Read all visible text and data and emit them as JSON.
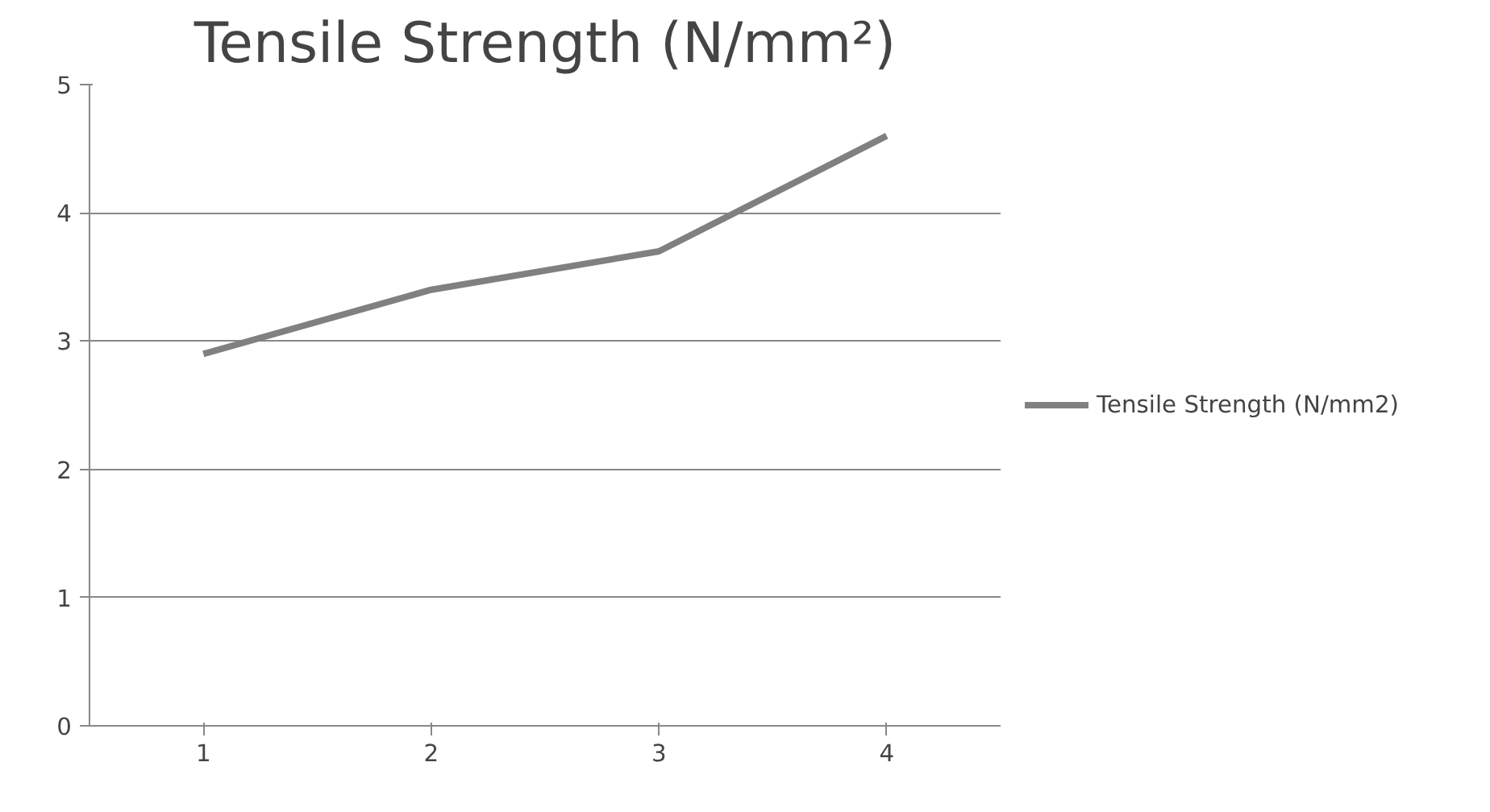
{
  "chart_data": {
    "type": "line",
    "title": "Tensile Strength (N/mm²)",
    "categories": [
      "1",
      "2",
      "3",
      "4"
    ],
    "series": [
      {
        "name": "Tensile Strength (N/mm2)",
        "color": "#808080",
        "values": [
          2.9,
          3.4,
          3.7,
          4.6
        ]
      }
    ],
    "ylim": [
      0,
      5
    ],
    "yticks": [
      0,
      1,
      2,
      3,
      4,
      5
    ],
    "grid": "y",
    "legend": "right",
    "marker": "none",
    "line_style": "solid"
  }
}
